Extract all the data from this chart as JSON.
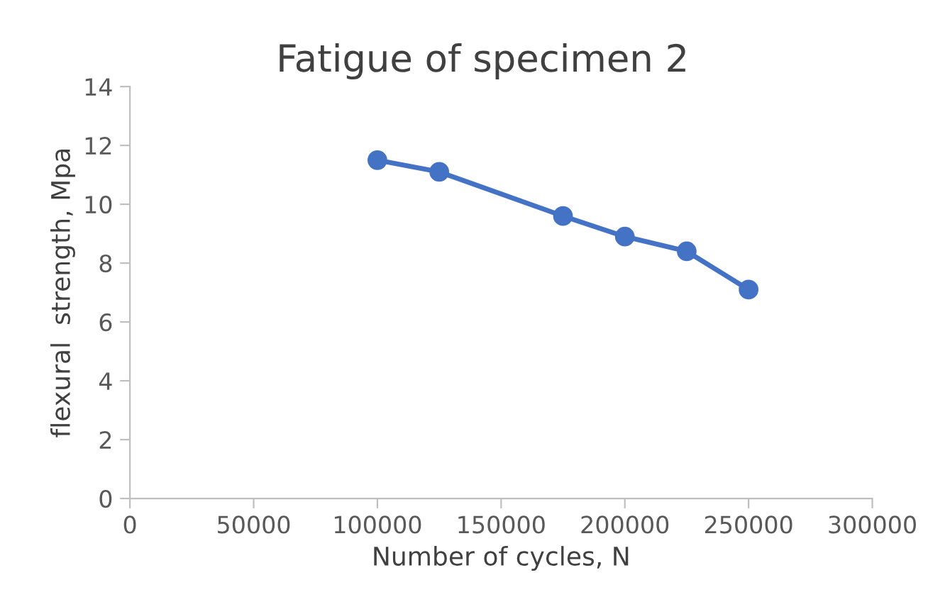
{
  "chart_data": {
    "type": "line",
    "title": "Fatigue of specimen 2",
    "xlabel": "Number of cycles, N",
    "ylabel": "flexural  strength, Mpa",
    "x": [
      100000,
      125000,
      175000,
      200000,
      225000,
      250000
    ],
    "series": [
      {
        "color": "#4472c4",
        "values": [
          11.5,
          11.1,
          9.6,
          8.9,
          8.4,
          7.1
        ]
      }
    ],
    "xlim": [
      0,
      300000
    ],
    "xticks": [
      0,
      50000,
      100000,
      150000,
      200000,
      250000,
      300000
    ],
    "ylim": [
      0,
      14
    ],
    "yticks": [
      0,
      2,
      4,
      6,
      8,
      10,
      12,
      14
    ],
    "grid": false,
    "legend": false,
    "marker": "circle",
    "line_style": "solid"
  }
}
